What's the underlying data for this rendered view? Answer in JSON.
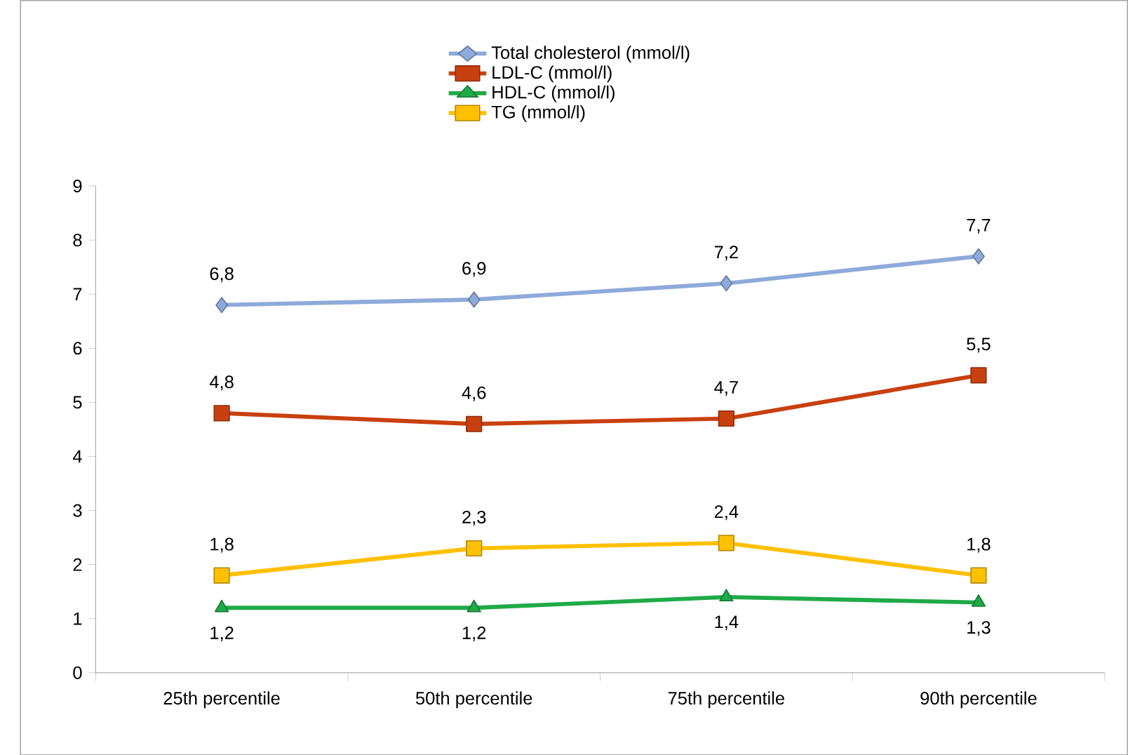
{
  "chart_data": {
    "type": "line",
    "categories": [
      "25th percentile",
      "50th percentile",
      "75th percentile",
      "90th percentile"
    ],
    "series": [
      {
        "name": "Total cholesterol (mmol/l)",
        "color": "#8eaadb",
        "marker": "diamond",
        "values": [
          6.8,
          6.9,
          7.2,
          7.7
        ],
        "value_labels": [
          "6,8",
          "6,9",
          "7,2",
          "7,7"
        ]
      },
      {
        "name": "LDL-C (mmol/l)",
        "color": "#c9400f",
        "marker": "square",
        "values": [
          4.8,
          4.6,
          4.7,
          5.5
        ],
        "value_labels": [
          "4,8",
          "4,6",
          "4,7",
          "5,5"
        ]
      },
      {
        "name": "HDL-C (mmol/l)",
        "color": "#1faa48",
        "marker": "triangle",
        "values": [
          1.2,
          1.2,
          1.4,
          1.3
        ],
        "value_labels": [
          "1,2",
          "1,2",
          "1,4",
          "1,3"
        ]
      },
      {
        "name": "TG (mmol/l)",
        "color": "#ffc000",
        "marker": "square",
        "values": [
          1.8,
          2.3,
          2.4,
          1.8
        ],
        "value_labels": [
          "1,8",
          "2,3",
          "2,4",
          "1,8"
        ]
      }
    ],
    "ylim": [
      0,
      9
    ],
    "yticks": [
      0,
      1,
      2,
      3,
      4,
      5,
      6,
      7,
      8,
      9
    ],
    "grid": false,
    "legend": "top"
  }
}
